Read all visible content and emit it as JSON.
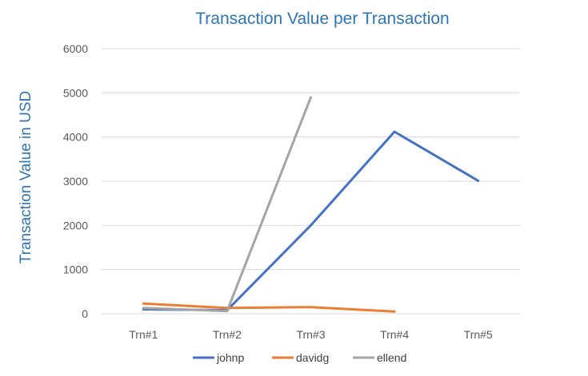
{
  "chart_data": {
    "type": "line",
    "title": "Transaction Value per Transaction",
    "xlabel": "",
    "ylabel": "Transaction Value in USD",
    "categories": [
      "Trn#1",
      "Trn#2",
      "Trn#3",
      "Trn#4",
      "Trn#5"
    ],
    "ylim": [
      0,
      6000
    ],
    "yticks": [
      0,
      1000,
      2000,
      3000,
      4000,
      5000,
      6000
    ],
    "grid": true,
    "legend_position": "bottom",
    "series": [
      {
        "name": "johnp",
        "color": "#4472C4",
        "values": [
          100,
          80,
          2000,
          4120,
          3010
        ]
      },
      {
        "name": "davidg",
        "color": "#ED7D31",
        "values": [
          230,
          130,
          150,
          50,
          null
        ]
      },
      {
        "name": "ellend",
        "color": "#A5A5A5",
        "values": [
          130,
          60,
          4900,
          null,
          null
        ]
      }
    ]
  }
}
